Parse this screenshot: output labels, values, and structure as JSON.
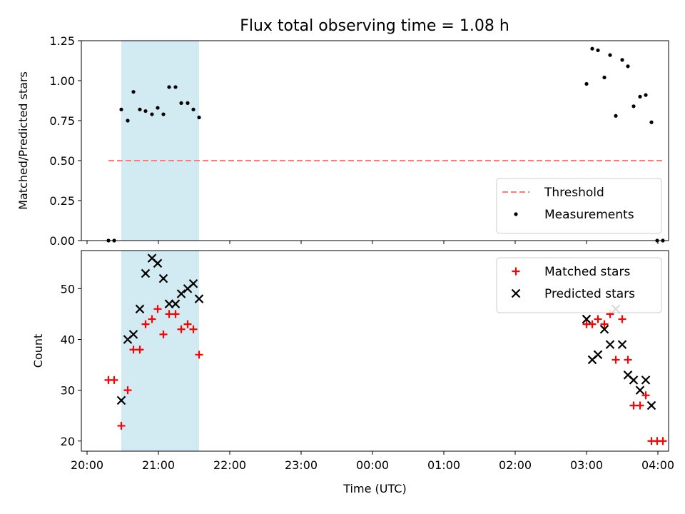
{
  "figure": {
    "title": "Flux total observing time = 1.08 h"
  },
  "chart_data": [
    {
      "type": "scatter",
      "ylabel": "Matched/Predicted stars",
      "ylim": [
        0,
        1.25
      ],
      "yticks": [
        0,
        0.25,
        0.5,
        0.75,
        1.0,
        1.25
      ],
      "ytick_labels": [
        "0.00",
        "0.25",
        "0.50",
        "0.75",
        "1.00",
        "1.25"
      ],
      "xlim_hours": [
        -0.08,
        8.15
      ],
      "x_tick_hours": [
        0,
        1,
        2,
        3,
        4,
        5,
        6,
        7,
        8
      ],
      "x_tick_labels": [
        "20:00",
        "21:00",
        "22:00",
        "23:00",
        "00:00",
        "01:00",
        "02:00",
        "03:00",
        "04:00"
      ],
      "grid": false,
      "legend_position": "lower-right",
      "shaded_span_hours": [
        0.48,
        1.57
      ],
      "shaded_color": "#add8e6",
      "threshold": {
        "name": "Threshold",
        "y": 0.5,
        "x_from": 0.3,
        "x_to": 8.08,
        "color": "#ff7b7b",
        "style": "dashed"
      },
      "series": [
        {
          "name": "Measurements",
          "marker": "dot",
          "color": "#000000",
          "x": [
            0.3,
            0.38,
            0.48,
            0.57,
            0.65,
            0.74,
            0.82,
            0.91,
            0.99,
            1.07,
            1.15,
            1.24,
            1.32,
            1.41,
            1.49,
            1.57,
            7.0,
            7.08,
            7.16,
            7.25,
            7.33,
            7.41,
            7.5,
            7.58,
            7.66,
            7.75,
            7.83,
            7.91,
            7.99,
            8.07
          ],
          "y": [
            0.0,
            0.0,
            0.82,
            0.75,
            0.93,
            0.82,
            0.81,
            0.79,
            0.83,
            0.79,
            0.96,
            0.96,
            0.86,
            0.86,
            0.82,
            0.77,
            0.98,
            1.2,
            1.19,
            1.02,
            1.16,
            0.78,
            1.13,
            1.09,
            0.84,
            0.9,
            0.91,
            0.74,
            0.0,
            0.0
          ]
        }
      ]
    },
    {
      "type": "scatter",
      "xlabel": "Time (UTC)",
      "ylabel": "Count",
      "ylim": [
        18,
        57.5
      ],
      "yticks": [
        20,
        30,
        40,
        50
      ],
      "ytick_labels": [
        "20",
        "30",
        "40",
        "50"
      ],
      "xlim_hours": [
        -0.08,
        8.15
      ],
      "x_tick_hours": [
        0,
        1,
        2,
        3,
        4,
        5,
        6,
        7,
        8
      ],
      "x_tick_labels": [
        "20:00",
        "21:00",
        "22:00",
        "23:00",
        "00:00",
        "01:00",
        "02:00",
        "03:00",
        "04:00"
      ],
      "grid": false,
      "legend_position": "upper-right",
      "shaded_span_hours": [
        0.48,
        1.57
      ],
      "shaded_color": "#add8e6",
      "series": [
        {
          "name": "Matched stars",
          "marker": "plus",
          "color": "#ff0000",
          "x": [
            0.3,
            0.38,
            0.48,
            0.57,
            0.65,
            0.74,
            0.82,
            0.91,
            0.99,
            1.07,
            1.15,
            1.24,
            1.32,
            1.41,
            1.49,
            1.57,
            7.0,
            7.08,
            7.16,
            7.25,
            7.33,
            7.41,
            7.5,
            7.58,
            7.66,
            7.75,
            7.83,
            7.91,
            7.99,
            8.07
          ],
          "y": [
            32,
            32,
            23,
            30,
            38,
            38,
            43,
            44,
            46,
            41,
            45,
            45,
            42,
            43,
            42,
            37,
            43,
            43,
            44,
            43,
            45,
            36,
            44,
            36,
            27,
            27,
            29,
            20,
            20,
            20
          ]
        },
        {
          "name": "Predicted stars",
          "marker": "x",
          "color": "#000000",
          "x": [
            0.48,
            0.57,
            0.65,
            0.74,
            0.82,
            0.91,
            0.99,
            1.07,
            1.15,
            1.24,
            1.32,
            1.41,
            1.49,
            1.57,
            7.0,
            7.08,
            7.16,
            7.25,
            7.33,
            7.41,
            7.5,
            7.58,
            7.66,
            7.75,
            7.83,
            7.91
          ],
          "y": [
            28,
            40,
            41,
            46,
            53,
            56,
            55,
            52,
            47,
            47,
            49,
            50,
            51,
            48,
            44,
            36,
            37,
            42,
            39,
            46,
            39,
            33,
            32,
            30,
            32,
            27
          ]
        }
      ]
    }
  ]
}
